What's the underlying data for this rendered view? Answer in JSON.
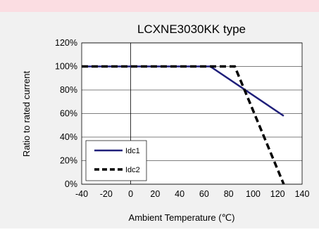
{
  "colors": {
    "background_band": "#fbdde2",
    "panel": "#f1f1f1",
    "plot_area": "#ffffff",
    "series_idc1": "#1f1f7a",
    "series_idc2": "#000000"
  },
  "chart_data": {
    "type": "line",
    "title": "LCXNE3030KK type",
    "xlabel": "Ambient Temperature (℃)",
    "ylabel": "Ratio to rated current",
    "xlim": [
      -40,
      140
    ],
    "ylim": [
      0,
      120
    ],
    "x_ticks": [
      "-40",
      "-20",
      "0",
      "20",
      "40",
      "60",
      "80",
      "100",
      "120",
      "140"
    ],
    "y_ticks": [
      "0%",
      "20%",
      "40%",
      "60%",
      "80%",
      "100%",
      "120%"
    ],
    "grid": true,
    "legend_position": "bottom-left",
    "series": [
      {
        "name": "Idc1",
        "style": "solid",
        "x": [
          -40,
          65,
          125
        ],
        "y": [
          100,
          100,
          58
        ]
      },
      {
        "name": "Idc2",
        "style": "dashed",
        "x": [
          -40,
          85,
          125
        ],
        "y": [
          100,
          100,
          0
        ]
      }
    ]
  }
}
